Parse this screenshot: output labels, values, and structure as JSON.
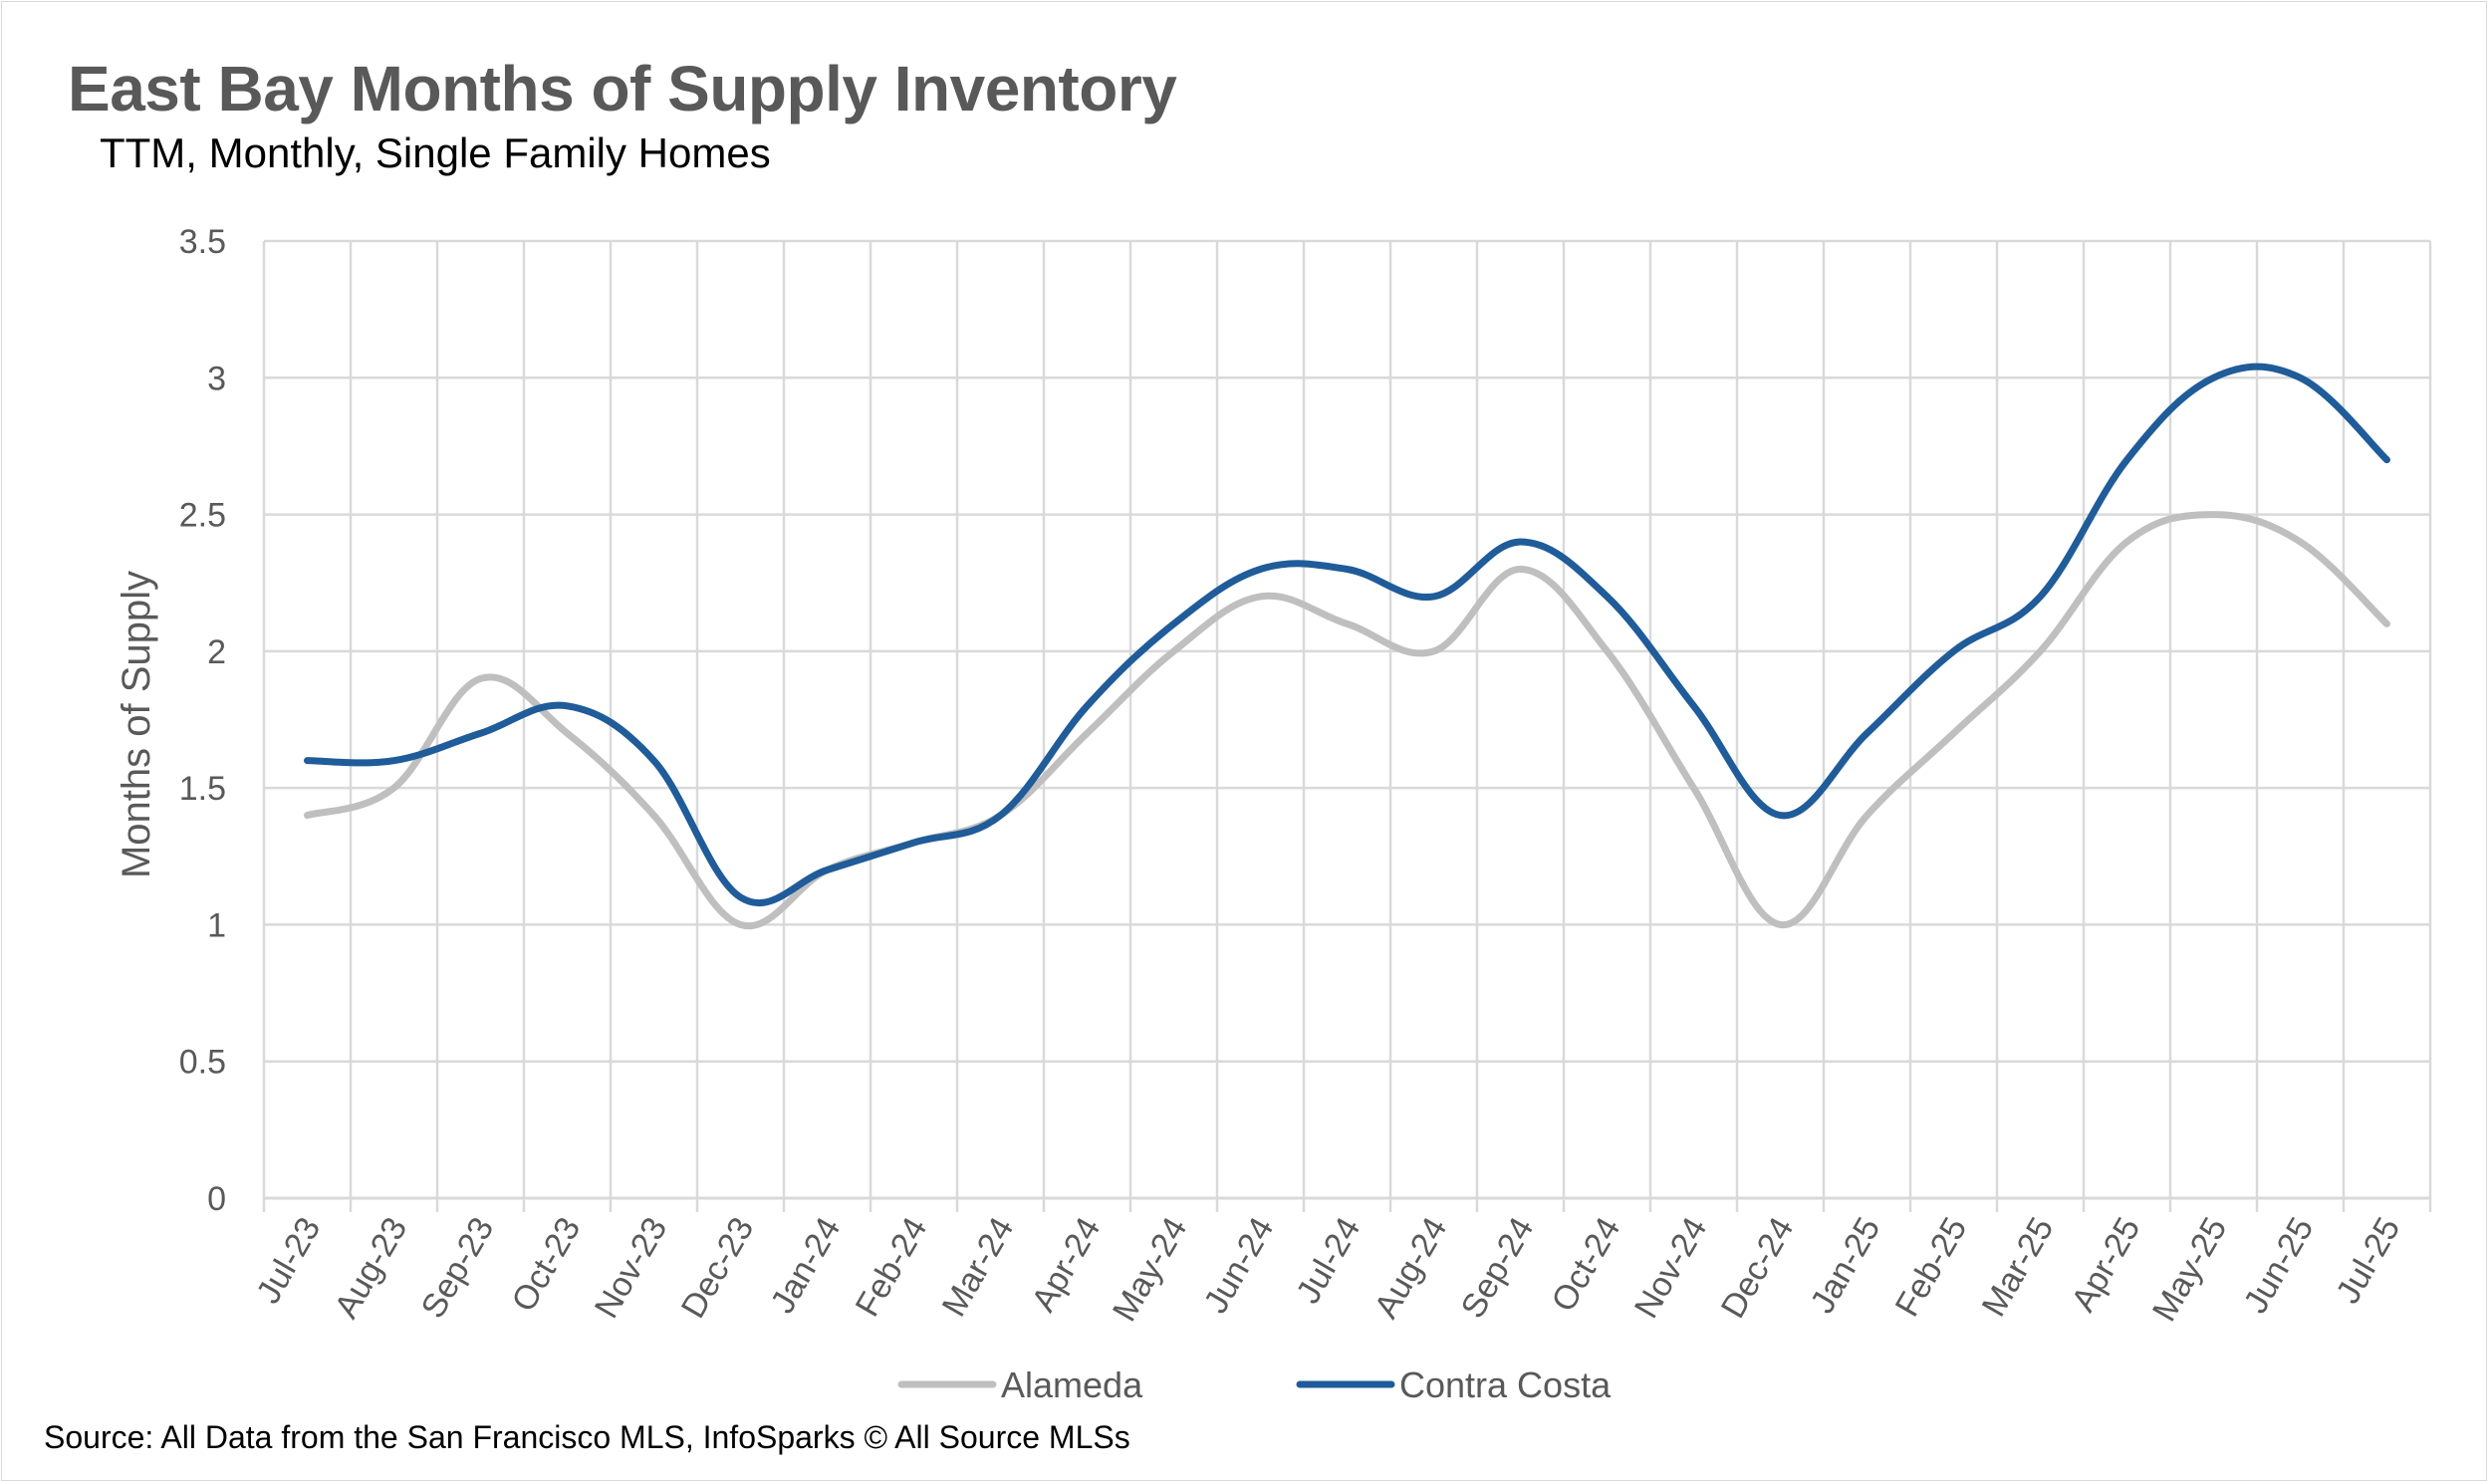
{
  "header": {
    "title": "East Bay Months of Supply Inventory",
    "subtitle": "TTM, Monthly, Single Family Homes"
  },
  "footer": {
    "source": "Source: All Data from the San Francisco MLS, InfoSparks © All Source MLSs"
  },
  "chart_data": {
    "type": "line",
    "ylabel": "Months of Supply",
    "ylim": [
      0,
      3.5
    ],
    "yticks": [
      "0",
      "0.5",
      "1",
      "1.5",
      "2",
      "2.5",
      "3",
      "3.5"
    ],
    "ytick_values": [
      0,
      0.5,
      1,
      1.5,
      2,
      2.5,
      3,
      3.5
    ],
    "grid": true,
    "legend_position": "bottom",
    "categories": [
      "Jul-23",
      "Aug-23",
      "Sep-23",
      "Oct-23",
      "Nov-23",
      "Dec-23",
      "Jan-24",
      "Feb-24",
      "Mar-24",
      "Apr-24",
      "May-24",
      "Jun-24",
      "Jul-24",
      "Aug-24",
      "Sep-24",
      "Oct-24",
      "Nov-24",
      "Dec-24",
      "Jan-25",
      "Feb-25",
      "Mar-25",
      "Apr-25",
      "May-25",
      "Jun-25",
      "Jul-25"
    ],
    "series": [
      {
        "name": "Alameda",
        "color": "#bfbfbf",
        "values": [
          1.4,
          1.5,
          1.9,
          1.7,
          1.4,
          1.0,
          1.2,
          1.3,
          1.4,
          1.7,
          2.0,
          2.2,
          2.1,
          2.0,
          2.3,
          2.0,
          1.5,
          1.0,
          1.4,
          1.7,
          2.0,
          2.4,
          2.5,
          2.4,
          2.1
        ]
      },
      {
        "name": "Contra Costa",
        "color": "#1f5c99",
        "values": [
          1.6,
          1.6,
          1.7,
          1.8,
          1.6,
          1.1,
          1.2,
          1.3,
          1.4,
          1.8,
          2.1,
          2.3,
          2.3,
          2.2,
          2.4,
          2.2,
          1.8,
          1.4,
          1.7,
          2.0,
          2.2,
          2.7,
          3.0,
          3.0,
          2.7
        ]
      }
    ]
  }
}
